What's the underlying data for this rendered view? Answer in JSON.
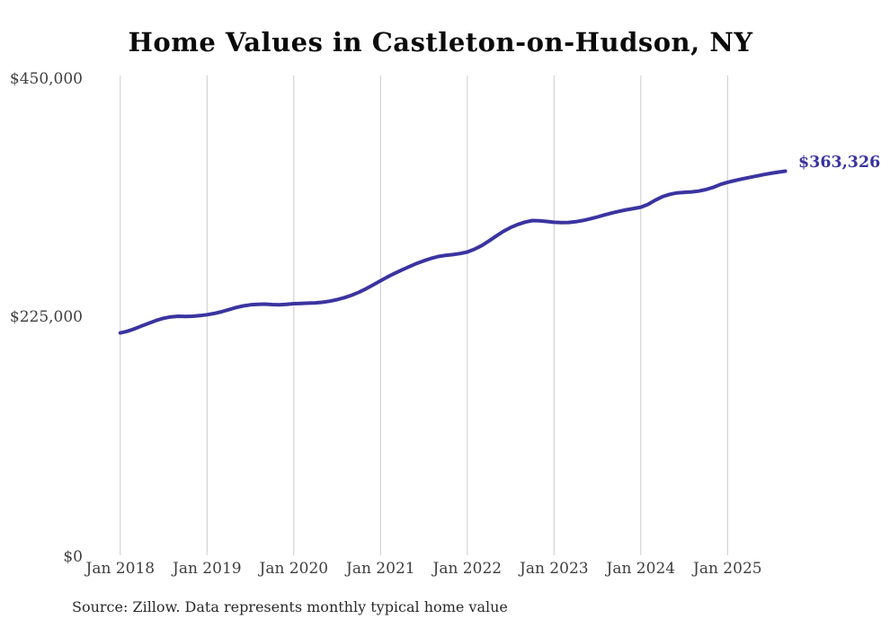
{
  "chart_data": {
    "type": "line",
    "title": "Home Values in Castleton-on-Hudson, NY",
    "source_note": "Source: Zillow. Data represents monthly typical home value",
    "end_label": "$363,326",
    "final_value": 363326,
    "line_color": "#3a34a0",
    "grid_color": "#cccccc",
    "ylim": [
      0,
      450000
    ],
    "y_tick_labels": [
      "$450,000",
      "$225,000",
      "$0"
    ],
    "y_tick_values": [
      450000,
      225000,
      0
    ],
    "x_tick_labels": [
      "Jan 2018",
      "Jan 2019",
      "Jan 2020",
      "Jan 2021",
      "Jan 2022",
      "Jan 2023",
      "Jan 2024",
      "Jan 2025"
    ],
    "x_start": "Jan 2018",
    "x_end": "Sep 2025",
    "frequency": "monthly",
    "legend": "none",
    "grid": "vertical-only",
    "series": [
      {
        "name": "Typical home value",
        "values": [
          211000,
          212600,
          214900,
          217600,
          220300,
          222800,
          224800,
          226100,
          226700,
          226500,
          226700,
          227300,
          228100,
          229300,
          230900,
          232900,
          234900,
          236400,
          237400,
          237900,
          238100,
          237700,
          237500,
          237900,
          238500,
          238800,
          239000,
          239300,
          239900,
          240900,
          242300,
          244200,
          246500,
          249300,
          252600,
          256300,
          260100,
          263800,
          267200,
          270400,
          273500,
          276400,
          279000,
          281200,
          282900,
          284000,
          284700,
          285700,
          287200,
          289800,
          293300,
          297600,
          302200,
          306600,
          310300,
          313100,
          315300,
          316800,
          316600,
          315900,
          315200,
          314800,
          315000,
          315700,
          316900,
          318400,
          320200,
          322100,
          323900,
          325500,
          326900,
          328100,
          329400,
          332000,
          336000,
          339300,
          341500,
          342800,
          343300,
          343800,
          344500,
          346000,
          348000,
          350800,
          352800,
          354400,
          355900,
          357300,
          358700,
          360100,
          361300,
          362400,
          363326
        ]
      }
    ]
  }
}
